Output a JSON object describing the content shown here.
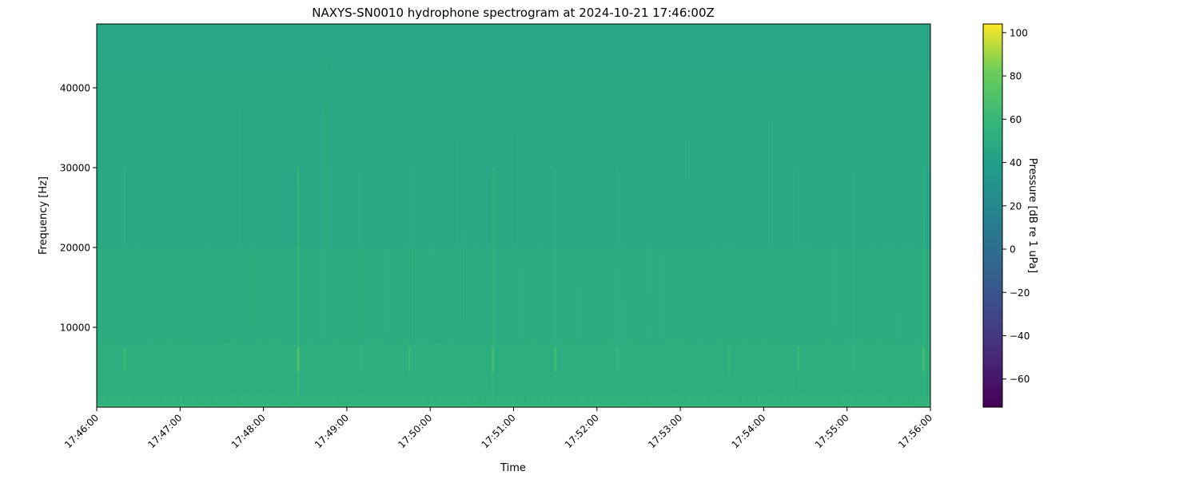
{
  "chart_data": {
    "type": "heatmap",
    "title": "NAXYS-SN0010 hydrophone spectrogram at 2024-10-21 17:46:00Z",
    "xlabel": "Time",
    "ylabel": "Frequency [Hz]",
    "colorbar_label": "Pressure [dB re 1 uPa]",
    "colormap": "viridis",
    "xlim": [
      "17:46:00",
      "17:56:00"
    ],
    "ylim": [
      0,
      48000
    ],
    "clim": [
      -73,
      104
    ],
    "x_ticks": [
      "17:46:00",
      "17:47:00",
      "17:48:00",
      "17:49:00",
      "17:50:00",
      "17:51:00",
      "17:52:00",
      "17:53:00",
      "17:54:00",
      "17:55:00",
      "17:56:00"
    ],
    "y_ticks": [
      10000,
      20000,
      30000,
      40000
    ],
    "colorbar_ticks": [
      -60,
      -40,
      -20,
      0,
      20,
      40,
      60,
      80,
      100
    ],
    "frequency_bands": [
      {
        "range_hz": [
          0,
          300
        ],
        "level_db": 62
      },
      {
        "range_hz": [
          300,
          1500
        ],
        "level_db": 55
      },
      {
        "range_hz": [
          1500,
          8000
        ],
        "level_db": 52
      },
      {
        "range_hz": [
          8000,
          20000
        ],
        "level_db": 50
      },
      {
        "range_hz": [
          20000,
          42000
        ],
        "level_db": 47
      },
      {
        "range_hz": [
          42000,
          48000
        ],
        "level_db": 46
      }
    ],
    "transients": [
      {
        "time": "17:46:20",
        "level_db": 62
      },
      {
        "time": "17:48:25",
        "level_db": 70
      },
      {
        "time": "17:49:10",
        "level_db": 60
      },
      {
        "time": "17:49:45",
        "level_db": 62
      },
      {
        "time": "17:50:45",
        "level_db": 66
      },
      {
        "time": "17:51:30",
        "level_db": 63
      },
      {
        "time": "17:52:15",
        "level_db": 60
      },
      {
        "time": "17:53:35",
        "level_db": 60
      },
      {
        "time": "17:54:25",
        "level_db": 61
      },
      {
        "time": "17:55:05",
        "level_db": 60
      },
      {
        "time": "17:55:55",
        "level_db": 66
      }
    ],
    "grid": false
  }
}
